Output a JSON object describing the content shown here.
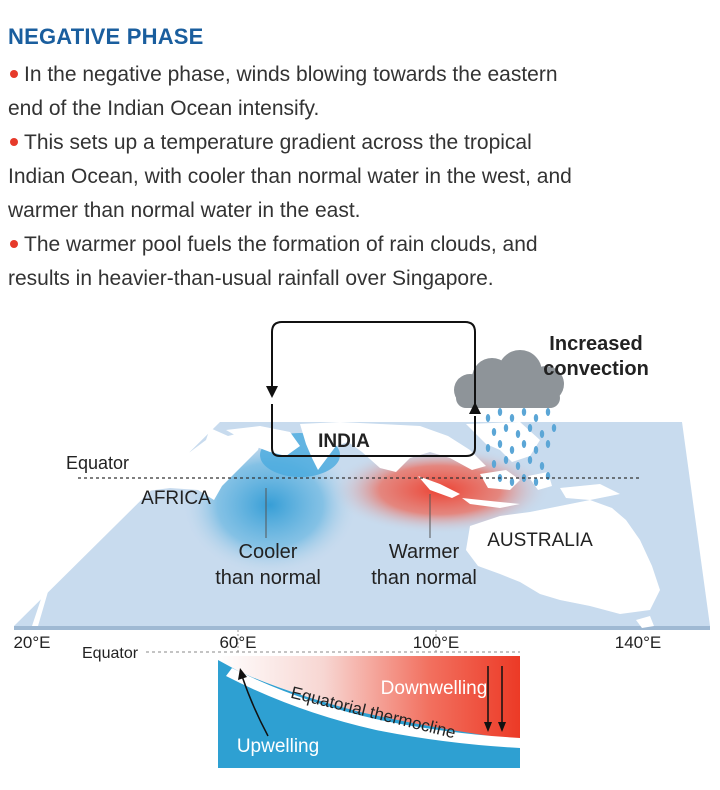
{
  "heading": "NEGATIVE PHASE",
  "bullets": [
    {
      "lines": [
        "In the negative phase, winds blowing towards the eastern",
        "end of the Indian Ocean intensify."
      ]
    },
    {
      "lines": [
        "This sets up a temperature gradient across the tropical",
        "Indian Ocean, with cooler than normal water in the west, and",
        "warmer than normal water in the east."
      ]
    },
    {
      "lines": [
        "The warmer pool fuels the formation of rain clouds, and",
        "results in heavier-than-usual rainfall over Singapore."
      ]
    }
  ],
  "diagram": {
    "increased_convection": [
      "Increased",
      "convection"
    ],
    "india": "INDIA",
    "equator_top": "Equator",
    "africa": "AFRICA",
    "australia": "AUSTRALIA",
    "cooler": [
      "Cooler",
      "than normal"
    ],
    "warmer": [
      "Warmer",
      "than normal"
    ],
    "longitudes": [
      "20°E",
      "60°E",
      "100°E",
      "140°E"
    ],
    "equator_bottom": "Equator",
    "downwelling": "Downwelling",
    "thermocline": "Equatorial thermocline",
    "upwelling": "Upwelling"
  },
  "colors": {
    "heading": "#1a5e9e",
    "bullet": "#e63a2a",
    "ocean": "#c6d9ec",
    "cool_water": "#3aa3d8",
    "warm_water": "#ee3b2a",
    "cloud": "#8e9499",
    "rain": "#5ba6d6"
  }
}
